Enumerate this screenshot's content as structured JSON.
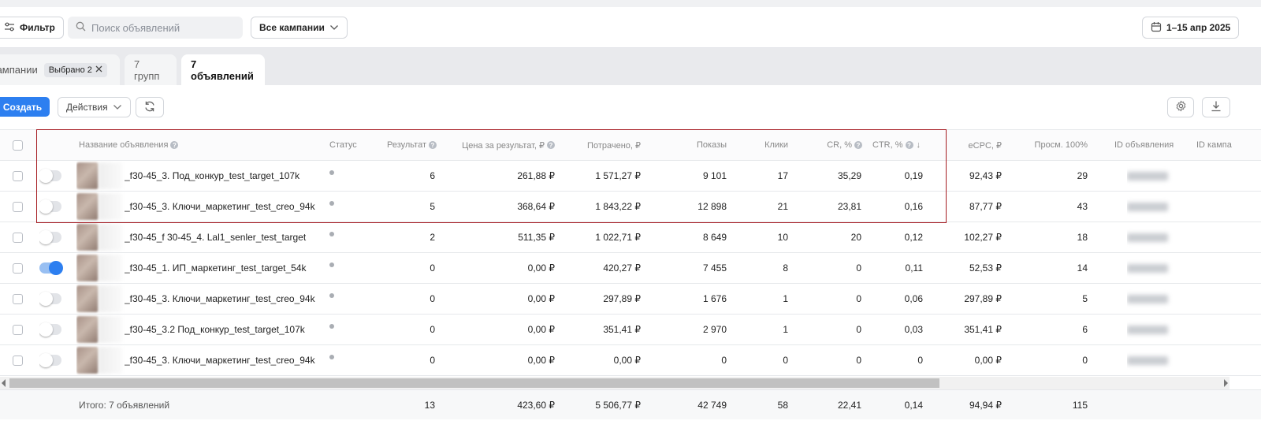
{
  "toolbar": {
    "filter_label": "Фильтр",
    "search_placeholder": "Поиск объявлений",
    "campaigns_select": "Все кампании",
    "date_range": "1–15 апр 2025"
  },
  "tabs": {
    "campaigns_label": "Кампании",
    "campaigns_chip": "Выбрано 2",
    "groups_label": "7 групп",
    "ads_label": "7 объявлений"
  },
  "actions": {
    "create_label": "Создать",
    "actions_label": "Действия"
  },
  "table": {
    "headers": {
      "name": "Название объявления",
      "status": "Статус",
      "result": "Результат",
      "price": "Цена за результат, ₽",
      "spent": "Потрачено, ₽",
      "shows": "Показы",
      "clicks": "Клики",
      "cr": "CR, %",
      "ctr": "CTR, %",
      "ecpc": "eCPC, ₽",
      "views": "Просм. 100%",
      "ad_id": "ID объявления",
      "campaign_id": "ID кампа"
    },
    "rows": [
      {
        "name": "_f30-45_3. Под_конкур_test_target_107k",
        "enabled": false,
        "result": "6",
        "price": "261,88 ₽",
        "spent": "1 571,27 ₽",
        "shows": "9 101",
        "clicks": "17",
        "cr": "35,29",
        "ctr": "0,19",
        "ecpc": "92,43 ₽",
        "views": "29"
      },
      {
        "name": "_f30-45_3. Ключи_маркетинг_test_creo_94k",
        "enabled": false,
        "result": "5",
        "price": "368,64 ₽",
        "spent": "1 843,22 ₽",
        "shows": "12 898",
        "clicks": "21",
        "cr": "23,81",
        "ctr": "0,16",
        "ecpc": "87,77 ₽",
        "views": "43"
      },
      {
        "name": "_f30-45_f 30-45_4. Lal1_senler_test_target",
        "enabled": false,
        "result": "2",
        "price": "511,35 ₽",
        "spent": "1 022,71 ₽",
        "shows": "8 649",
        "clicks": "10",
        "cr": "20",
        "ctr": "0,12",
        "ecpc": "102,27 ₽",
        "views": "18"
      },
      {
        "name": "_f30-45_1. ИП_маркетинг_test_target_54k",
        "enabled": true,
        "result": "0",
        "price": "0,00 ₽",
        "spent": "420,27 ₽",
        "shows": "7 455",
        "clicks": "8",
        "cr": "0",
        "ctr": "0,11",
        "ecpc": "52,53 ₽",
        "views": "14"
      },
      {
        "name": "_f30-45_3. Ключи_маркетинг_test_creo_94k",
        "enabled": false,
        "result": "0",
        "price": "0,00 ₽",
        "spent": "297,89 ₽",
        "shows": "1 676",
        "clicks": "1",
        "cr": "0",
        "ctr": "0,06",
        "ecpc": "297,89 ₽",
        "views": "5"
      },
      {
        "name": "_f30-45_3.2 Под_конкур_test_target_107k",
        "enabled": false,
        "result": "0",
        "price": "0,00 ₽",
        "spent": "351,41 ₽",
        "shows": "2 970",
        "clicks": "1",
        "cr": "0",
        "ctr": "0,03",
        "ecpc": "351,41 ₽",
        "views": "6"
      },
      {
        "name": "_f30-45_3. Ключи_маркетинг_test_creo_94k",
        "enabled": false,
        "result": "0",
        "price": "0,00 ₽",
        "spent": "0,00 ₽",
        "shows": "0",
        "clicks": "0",
        "cr": "0",
        "ctr": "0",
        "ecpc": "0,00 ₽",
        "views": "0"
      }
    ],
    "totals": {
      "label": "Итого: 7 объявлений",
      "result": "13",
      "price": "423,60 ₽",
      "spent": "5 506,77 ₽",
      "shows": "42 749",
      "clicks": "58",
      "cr": "22,41",
      "ctr": "0,14",
      "ecpc": "94,94 ₽",
      "views": "115"
    }
  },
  "colors": {
    "accent": "#2d7ff0",
    "highlight_box": "#a61c22",
    "muted_text": "#888888"
  },
  "icons": [
    "filter-icon",
    "search-icon",
    "chevron-down-icon",
    "calendar-icon",
    "close-icon",
    "refresh-icon",
    "gear-icon",
    "download-icon",
    "help-icon",
    "sort-down-icon"
  ]
}
